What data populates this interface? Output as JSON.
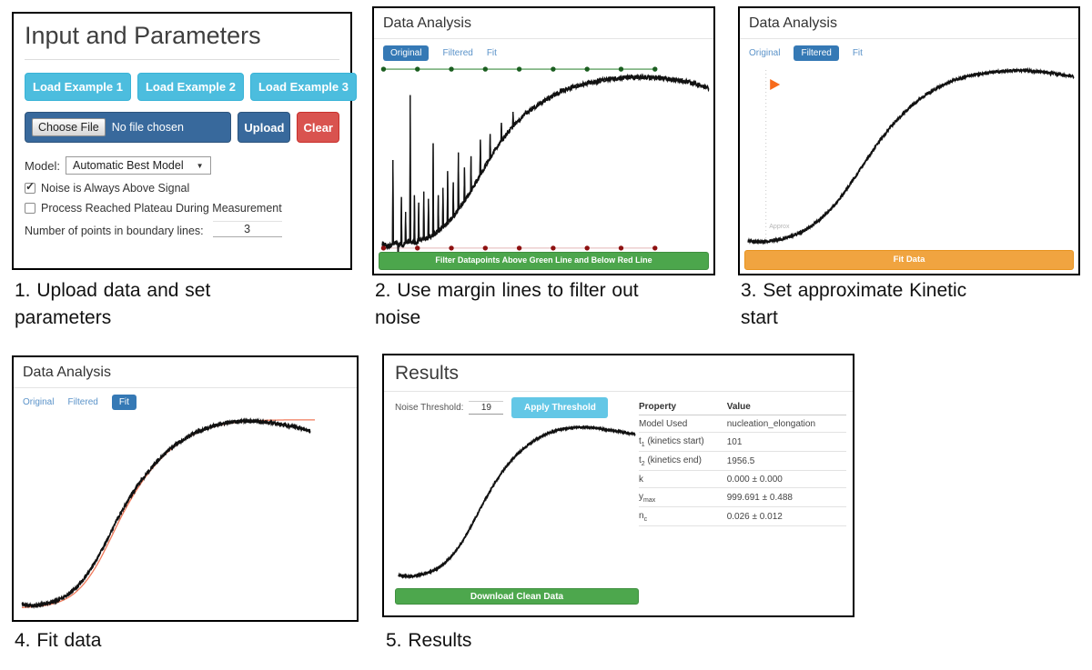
{
  "colors": {
    "info_button": "#4cbdde",
    "primary_blue": "#38699c",
    "danger_red": "#d9534f",
    "success_green": "#4ca64c",
    "warning_orange": "#f0a440",
    "tab_active_blue": "#3579b5",
    "apply_button_blue": "#63c7e6",
    "download_green": "#4da74d",
    "fit_line_salmon": "#f0795a",
    "green_margin": "#3e8e41",
    "green_margin_dot": "#1b5e20",
    "red_margin": "#e8c4c4",
    "red_margin_dot": "#8e1111",
    "kinetic_marker_orange": "#f76b1c"
  },
  "captions": {
    "step1": "1. Upload data and set parameters",
    "step2": "2. Use margin lines to filter out noise",
    "step3": "3. Set approximate Kinetic start",
    "step4": "4. Fit data",
    "step5": "5. Results"
  },
  "panels": {
    "input": {
      "title": "Input and Parameters",
      "example_buttons": [
        "Load Example 1",
        "Load Example 2",
        "Load Example 3"
      ],
      "file": {
        "choose_label": "Choose File",
        "status": "No file chosen",
        "upload_label": "Upload",
        "clear_label": "Clear"
      },
      "model": {
        "label": "Model:",
        "selected": "Automatic Best Model"
      },
      "checkboxes": [
        {
          "label": "Noise is Always Above Signal",
          "checked": true
        },
        {
          "label": "Process Reached Plateau During Measurement",
          "checked": false
        }
      ],
      "points": {
        "label": "Number of points in boundary lines:",
        "value": "3"
      }
    },
    "filter": {
      "title": "Data Analysis",
      "tabs": [
        {
          "label": "Original",
          "active": true
        },
        {
          "label": "Filtered",
          "active": false
        },
        {
          "label": "Fit",
          "active": false
        }
      ],
      "button": "Filter Datapoints Above Green Line and Below Red Line",
      "chart_data": {
        "type": "line",
        "series": [
          {
            "name": "original-data",
            "color": "#111111",
            "width": 1.3,
            "noise": 0.013,
            "passes": 2,
            "points": [
              [
                0,
                0.05
              ],
              [
                0.02,
                0.035
              ],
              [
                0.04,
                0.055
              ],
              [
                0.06,
                0.04
              ],
              [
                0.08,
                0.06
              ],
              [
                0.1,
                0.055
              ],
              [
                0.12,
                0.07
              ],
              [
                0.14,
                0.08
              ],
              [
                0.16,
                0.1
              ],
              [
                0.18,
                0.13
              ],
              [
                0.21,
                0.18
              ],
              [
                0.24,
                0.25
              ],
              [
                0.27,
                0.33
              ],
              [
                0.3,
                0.42
              ],
              [
                0.33,
                0.51
              ],
              [
                0.36,
                0.59
              ],
              [
                0.4,
                0.68
              ],
              [
                0.44,
                0.75
              ],
              [
                0.48,
                0.8
              ],
              [
                0.52,
                0.845
              ],
              [
                0.57,
                0.885
              ],
              [
                0.62,
                0.91
              ],
              [
                0.67,
                0.928
              ],
              [
                0.72,
                0.94
              ],
              [
                0.77,
                0.947
              ],
              [
                0.82,
                0.944
              ],
              [
                0.87,
                0.938
              ],
              [
                0.92,
                0.925
              ],
              [
                0.96,
                0.91
              ],
              [
                1.0,
                0.885
              ]
            ],
            "spikes": [
              [
                0.033,
                0.5
              ],
              [
                0.048,
                -0.025
              ],
              [
                0.058,
                0.3
              ],
              [
                0.072,
                0.22
              ],
              [
                0.086,
                0.85
              ],
              [
                0.098,
                0.31
              ],
              [
                0.112,
                0.27
              ],
              [
                0.127,
                0.33
              ],
              [
                0.142,
                0.29
              ],
              [
                0.156,
                0.59
              ],
              [
                0.171,
                0.31
              ],
              [
                0.186,
                0.35
              ],
              [
                0.201,
                0.44
              ],
              [
                0.218,
                0.38
              ],
              [
                0.233,
                0.54
              ],
              [
                0.252,
                0.46
              ],
              [
                0.272,
                0.52
              ],
              [
                0.3,
                0.61
              ],
              [
                0.33,
                0.64
              ],
              [
                0.365,
                0.7
              ],
              [
                0.4,
                0.76
              ]
            ]
          }
        ],
        "overlays": {
          "hlines": [
            {
              "name": "green-margin-line",
              "y": 0.99,
              "x0": 0.004,
              "x1": 0.835,
              "line_color": "#3e8e41",
              "dot_color": "#1b5e20",
              "dots": 9
            },
            {
              "name": "red-margin-line",
              "y": 0.025,
              "x0": 0.004,
              "x1": 0.835,
              "line_color": "#e8c4c4",
              "dot_color": "#8e1111",
              "dots": 9
            }
          ]
        }
      }
    },
    "kinetic": {
      "title": "Data Analysis",
      "tabs": [
        {
          "label": "Original",
          "active": false
        },
        {
          "label": "Filtered",
          "active": true
        },
        {
          "label": "Fit",
          "active": false
        }
      ],
      "button": "Fit Data",
      "chart_data": {
        "type": "line",
        "series": [
          {
            "name": "filtered-data",
            "color": "#111111",
            "width": 1.4,
            "noise": 0.008,
            "passes": 2,
            "points": [
              [
                0,
                0.045
              ],
              [
                0.04,
                0.04
              ],
              [
                0.08,
                0.048
              ],
              [
                0.11,
                0.058
              ],
              [
                0.14,
                0.075
              ],
              [
                0.17,
                0.1
              ],
              [
                0.2,
                0.135
              ],
              [
                0.24,
                0.195
              ],
              [
                0.28,
                0.275
              ],
              [
                0.32,
                0.375
              ],
              [
                0.36,
                0.48
              ],
              [
                0.4,
                0.585
              ],
              [
                0.44,
                0.675
              ],
              [
                0.48,
                0.75
              ],
              [
                0.52,
                0.815
              ],
              [
                0.57,
                0.875
              ],
              [
                0.62,
                0.92
              ],
              [
                0.67,
                0.948
              ],
              [
                0.72,
                0.966
              ],
              [
                0.78,
                0.978
              ],
              [
                0.84,
                0.982
              ],
              [
                0.9,
                0.975
              ],
              [
                0.95,
                0.963
              ],
              [
                1.0,
                0.948
              ]
            ]
          }
        ],
        "overlays": {
          "vline": {
            "name": "kinetic-start-line",
            "x": 0.055,
            "y0": 0.06,
            "y1": 0.99,
            "color": "#c9c9c9"
          },
          "marker": {
            "name": "kinetic-start-marker",
            "x": 0.062,
            "y": 0.905,
            "color": "#f76b1c",
            "shape": "triangle-right"
          },
          "label": {
            "name": "approx-label",
            "text": "Approx",
            "x": 0.065,
            "y": 0.115,
            "color": "#b5b5b5",
            "size": 7
          }
        }
      }
    },
    "fit": {
      "title": "Data Analysis",
      "tabs": [
        {
          "label": "Original",
          "active": false
        },
        {
          "label": "Filtered",
          "active": false
        },
        {
          "label": "Fit",
          "active": true
        }
      ],
      "chart_data": {
        "type": "line",
        "series": [
          {
            "name": "fit-line",
            "color": "#f0795a",
            "width": 1.3,
            "noise": 0,
            "passes": 1,
            "points": [
              [
                0,
                0.035
              ],
              [
                0.06,
                0.042
              ],
              [
                0.1,
                0.052
              ],
              [
                0.14,
                0.072
              ],
              [
                0.18,
                0.108
              ],
              [
                0.22,
                0.17
              ],
              [
                0.26,
                0.26
              ],
              [
                0.3,
                0.375
              ],
              [
                0.34,
                0.495
              ],
              [
                0.38,
                0.6
              ],
              [
                0.42,
                0.69
              ],
              [
                0.46,
                0.762
              ],
              [
                0.5,
                0.822
              ],
              [
                0.55,
                0.878
              ],
              [
                0.6,
                0.918
              ],
              [
                0.66,
                0.949
              ],
              [
                0.72,
                0.967
              ],
              [
                0.8,
                0.978
              ],
              [
                0.9,
                0.982
              ],
              [
                1.0,
                0.982
              ]
            ]
          },
          {
            "name": "filtered-data",
            "color": "#111111",
            "width": 1.4,
            "noise": 0.009,
            "passes": 2,
            "points": [
              [
                0,
                0.05
              ],
              [
                0.04,
                0.045
              ],
              [
                0.08,
                0.055
              ],
              [
                0.11,
                0.065
              ],
              [
                0.14,
                0.085
              ],
              [
                0.17,
                0.115
              ],
              [
                0.2,
                0.16
              ],
              [
                0.24,
                0.24
              ],
              [
                0.28,
                0.345
              ],
              [
                0.32,
                0.465
              ],
              [
                0.36,
                0.57
              ],
              [
                0.4,
                0.66
              ],
              [
                0.44,
                0.735
              ],
              [
                0.48,
                0.8
              ],
              [
                0.52,
                0.85
              ],
              [
                0.57,
                0.9
              ],
              [
                0.62,
                0.935
              ],
              [
                0.67,
                0.957
              ],
              [
                0.72,
                0.97
              ],
              [
                0.78,
                0.976
              ],
              [
                0.84,
                0.97
              ],
              [
                0.9,
                0.955
              ],
              [
                0.95,
                0.94
              ],
              [
                0.985,
                0.924
              ]
            ]
          }
        ]
      }
    },
    "results": {
      "title": "Results",
      "noise_threshold": {
        "label": "Noise Threshold:",
        "value": "19"
      },
      "apply_button": "Apply Threshold",
      "download_button": "Download Clean Data",
      "table": {
        "headers": [
          "Property",
          "Value"
        ],
        "rows": [
          {
            "property": {
              "text": "Model Used"
            },
            "value": "nucleation_elongation"
          },
          {
            "property": {
              "text": "t",
              "sub": "1",
              "suffix": " (kinetics start)"
            },
            "value": "101"
          },
          {
            "property": {
              "text": "t",
              "sub": "2",
              "suffix": " (kinetics end)"
            },
            "value": "1956.5"
          },
          {
            "property": {
              "text": "k"
            },
            "value": "0.000 ± 0.000"
          },
          {
            "property": {
              "text": "y",
              "sub": "max"
            },
            "value": "999.691 ± 0.488"
          },
          {
            "property": {
              "text": "n",
              "sub": "c"
            },
            "value": "0.026 ± 0.012"
          }
        ]
      },
      "chart_data": {
        "type": "line",
        "series": [
          {
            "name": "clean-data",
            "color": "#111111",
            "width": 1.4,
            "noise": 0.007,
            "passes": 2,
            "points": [
              [
                0,
                0.045
              ],
              [
                0.05,
                0.04
              ],
              [
                0.09,
                0.05
              ],
              [
                0.13,
                0.065
              ],
              [
                0.17,
                0.095
              ],
              [
                0.21,
                0.145
              ],
              [
                0.25,
                0.215
              ],
              [
                0.29,
                0.31
              ],
              [
                0.33,
                0.42
              ],
              [
                0.37,
                0.53
              ],
              [
                0.41,
                0.63
              ],
              [
                0.45,
                0.715
              ],
              [
                0.49,
                0.785
              ],
              [
                0.53,
                0.84
              ],
              [
                0.58,
                0.895
              ],
              [
                0.63,
                0.932
              ],
              [
                0.68,
                0.956
              ],
              [
                0.73,
                0.968
              ],
              [
                0.78,
                0.972
              ],
              [
                0.84,
                0.965
              ],
              [
                0.9,
                0.952
              ],
              [
                1.0,
                0.928
              ]
            ]
          }
        ]
      }
    }
  }
}
